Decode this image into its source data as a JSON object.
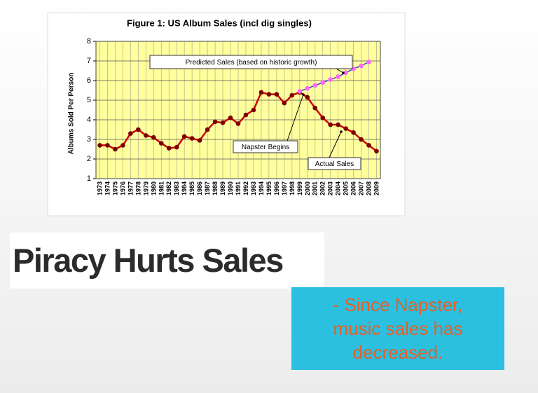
{
  "chart_data": {
    "type": "line",
    "title": "Figure 1: US Album Sales (incl dig singles)",
    "y_label": "Albums Sold Per Person",
    "categories": [
      "1973",
      "1974",
      "1975",
      "1976",
      "1977",
      "1978",
      "1979",
      "1980",
      "1981",
      "1982",
      "1983",
      "1984",
      "1985",
      "1986",
      "1987",
      "1988",
      "1989",
      "1990",
      "1991",
      "1992",
      "1993",
      "1994",
      "1995",
      "1996",
      "1997",
      "1998",
      "1999",
      "2000",
      "2001",
      "2002",
      "2003",
      "2004",
      "2005",
      "2006",
      "2007",
      "2008",
      "2009"
    ],
    "series": [
      {
        "color": "#cc0000",
        "marker_color": "#7a0000",
        "values": [
          2.7,
          2.7,
          2.5,
          2.7,
          3.3,
          3.5,
          3.2,
          3.1,
          2.8,
          2.55,
          2.6,
          3.15,
          3.05,
          2.95,
          3.5,
          3.9,
          3.85,
          4.1,
          3.8,
          4.25,
          4.5,
          5.4,
          5.3,
          5.3,
          4.85,
          5.25,
          5.4,
          5.15,
          4.6,
          4.1,
          3.75,
          3.75,
          3.55,
          3.35,
          3.0,
          2.7,
          2.4
        ]
      },
      {
        "color": "#3344cc",
        "marker_color": "#ff66ff",
        "values": [
          null,
          null,
          null,
          null,
          null,
          null,
          null,
          null,
          null,
          null,
          null,
          null,
          null,
          null,
          null,
          null,
          null,
          null,
          null,
          null,
          null,
          null,
          null,
          null,
          null,
          null,
          5.45,
          5.6,
          5.75,
          5.9,
          6.05,
          6.2,
          6.4,
          6.6,
          6.75,
          6.95,
          null
        ]
      }
    ],
    "annotations": [
      "Predicted Sales (based on historic growth)",
      "Napster Begins",
      "Actual Sales"
    ],
    "ylim": [
      1,
      8
    ],
    "yticks": [
      1,
      2,
      3,
      4,
      5,
      6,
      7,
      8
    ],
    "grid": true
  },
  "slide": {
    "heading": "Piracy Hurts Sales",
    "note": "- Since Napster, music sales has decreased."
  }
}
